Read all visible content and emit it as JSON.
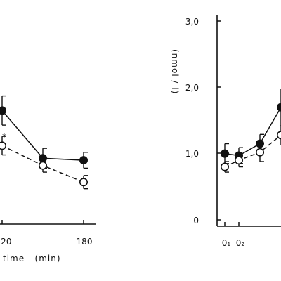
{
  "chart_data": [
    {
      "panel": "left",
      "type": "line",
      "xlabel": "time   (min)",
      "ylabel": "",
      "x_ticks": [
        "120",
        "180"
      ],
      "xlim": [
        0,
        190
      ],
      "ylim": [
        0,
        3.0
      ],
      "series": [
        {
          "marker": "filled-circle",
          "line_style": "solid",
          "color": "#111111",
          "points": [
            {
              "x": 120,
              "y": 1.65,
              "err": 0.22
            },
            {
              "x": 150,
              "y": 0.93,
              "err": 0.15
            },
            {
              "x": 180,
              "y": 0.9,
              "err": 0.12
            }
          ]
        },
        {
          "marker": "open-circle",
          "line_style": "dashed",
          "color": "#111111",
          "points": [
            {
              "x": 120,
              "y": 1.12,
              "err": 0.14
            },
            {
              "x": 150,
              "y": 0.82,
              "err": 0.1
            },
            {
              "x": 180,
              "y": 0.57,
              "err": 0.1
            }
          ]
        }
      ],
      "annotations": [
        {
          "text": "*",
          "x": 120,
          "y": 1.25
        }
      ]
    },
    {
      "panel": "right",
      "type": "line",
      "ylabel": "(nmol / l)",
      "y_ticks": [
        "0",
        "1,0",
        "2,0",
        "3,0"
      ],
      "x_ticks": [
        "0₁",
        "0₂"
      ],
      "ylim": [
        0,
        3.0
      ],
      "series": [
        {
          "marker": "filled-circle",
          "line_style": "solid",
          "color": "#111111",
          "points": [
            {
              "x": 0,
              "y": 1.0,
              "err": 0.15
            },
            {
              "x": 1,
              "y": 0.97,
              "err": 0.12
            },
            {
              "x": 2.5,
              "y": 1.15,
              "err": 0.14
            },
            {
              "x": 4,
              "y": 1.7,
              "err": 0.28
            }
          ]
        },
        {
          "marker": "open-circle",
          "line_style": "dashed",
          "color": "#111111",
          "points": [
            {
              "x": 0,
              "y": 0.8,
              "err": 0.08
            },
            {
              "x": 1,
              "y": 0.9,
              "err": 0.1
            },
            {
              "x": 2.5,
              "y": 1.02,
              "err": 0.14
            },
            {
              "x": 4,
              "y": 1.28,
              "err": 0.15
            }
          ]
        }
      ]
    }
  ]
}
